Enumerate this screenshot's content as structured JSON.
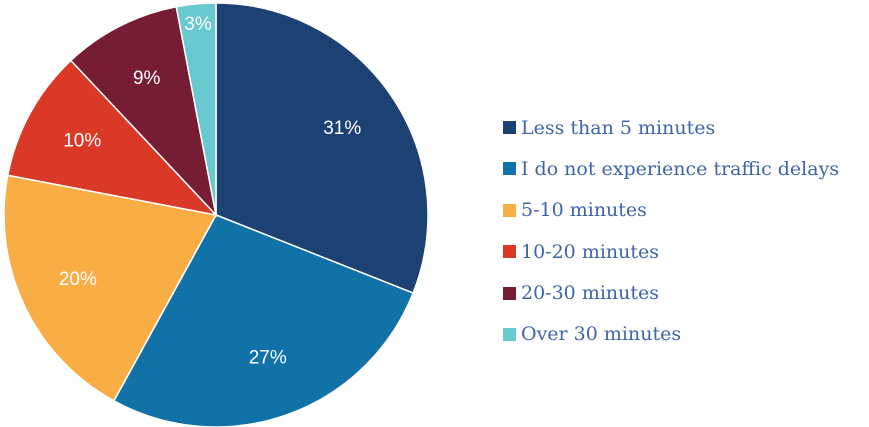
{
  "chart_data": {
    "type": "pie",
    "title": "",
    "legend_position": "right",
    "slices": [
      {
        "label": "Less than 5 minutes",
        "value": 31,
        "value_label": "31%",
        "color": "#1c4173"
      },
      {
        "label": "I do not experience traffic delays",
        "value": 27,
        "value_label": "27%",
        "color": "#1172a8"
      },
      {
        "label": "5-10 minutes",
        "value": 20,
        "value_label": "20%",
        "color": "#f8ad45"
      },
      {
        "label": "10-20 minutes",
        "value": 10,
        "value_label": "10%",
        "color": "#da3928"
      },
      {
        "label": "20-30 minutes",
        "value": 9,
        "value_label": "9%",
        "color": "#771d33"
      },
      {
        "label": "Over 30 minutes",
        "value": 3,
        "value_label": "3%",
        "color": "#69c9d1"
      }
    ]
  }
}
